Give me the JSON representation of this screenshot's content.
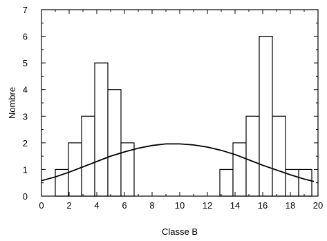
{
  "chart_data": {
    "type": "bar",
    "xlabel": "Classe B",
    "ylabel": "Nombre",
    "xlim": [
      0,
      20
    ],
    "ylim": [
      0,
      7
    ],
    "xticks": [
      0,
      2,
      4,
      6,
      8,
      10,
      12,
      14,
      16,
      18,
      20
    ],
    "yticks": [
      0,
      1,
      2,
      3,
      4,
      5,
      6,
      7
    ],
    "xtick_labels": [
      "0",
      "2",
      "4",
      "6",
      "8",
      "10",
      "12",
      "14",
      "16",
      "18",
      "20"
    ],
    "ytick_labels": [
      "0",
      "1",
      "2",
      "3",
      "4",
      "5",
      "6",
      "7"
    ],
    "bin_width": 0.95,
    "bins": [
      {
        "x0": 1.0,
        "value": 1
      },
      {
        "x0": 1.95,
        "value": 2
      },
      {
        "x0": 2.9,
        "value": 3
      },
      {
        "x0": 3.85,
        "value": 5
      },
      {
        "x0": 4.8,
        "value": 4
      },
      {
        "x0": 5.75,
        "value": 2
      },
      {
        "x0": 12.9,
        "value": 1
      },
      {
        "x0": 13.85,
        "value": 2
      },
      {
        "x0": 14.8,
        "value": 3
      },
      {
        "x0": 15.75,
        "value": 6
      },
      {
        "x0": 16.7,
        "value": 3
      },
      {
        "x0": 17.65,
        "value": 1
      },
      {
        "x0": 18.6,
        "value": 1
      }
    ],
    "fit_curve": {
      "x": [
        0,
        1,
        2,
        3,
        4,
        5,
        6,
        7,
        8,
        9,
        10,
        11,
        12,
        13,
        14,
        15,
        16,
        17,
        18,
        19,
        19.7
      ],
      "y": [
        0.58,
        0.72,
        0.9,
        1.1,
        1.3,
        1.5,
        1.66,
        1.8,
        1.9,
        1.96,
        1.96,
        1.92,
        1.84,
        1.72,
        1.56,
        1.36,
        1.16,
        0.98,
        0.8,
        0.64,
        0.55
      ]
    },
    "grid": false
  }
}
